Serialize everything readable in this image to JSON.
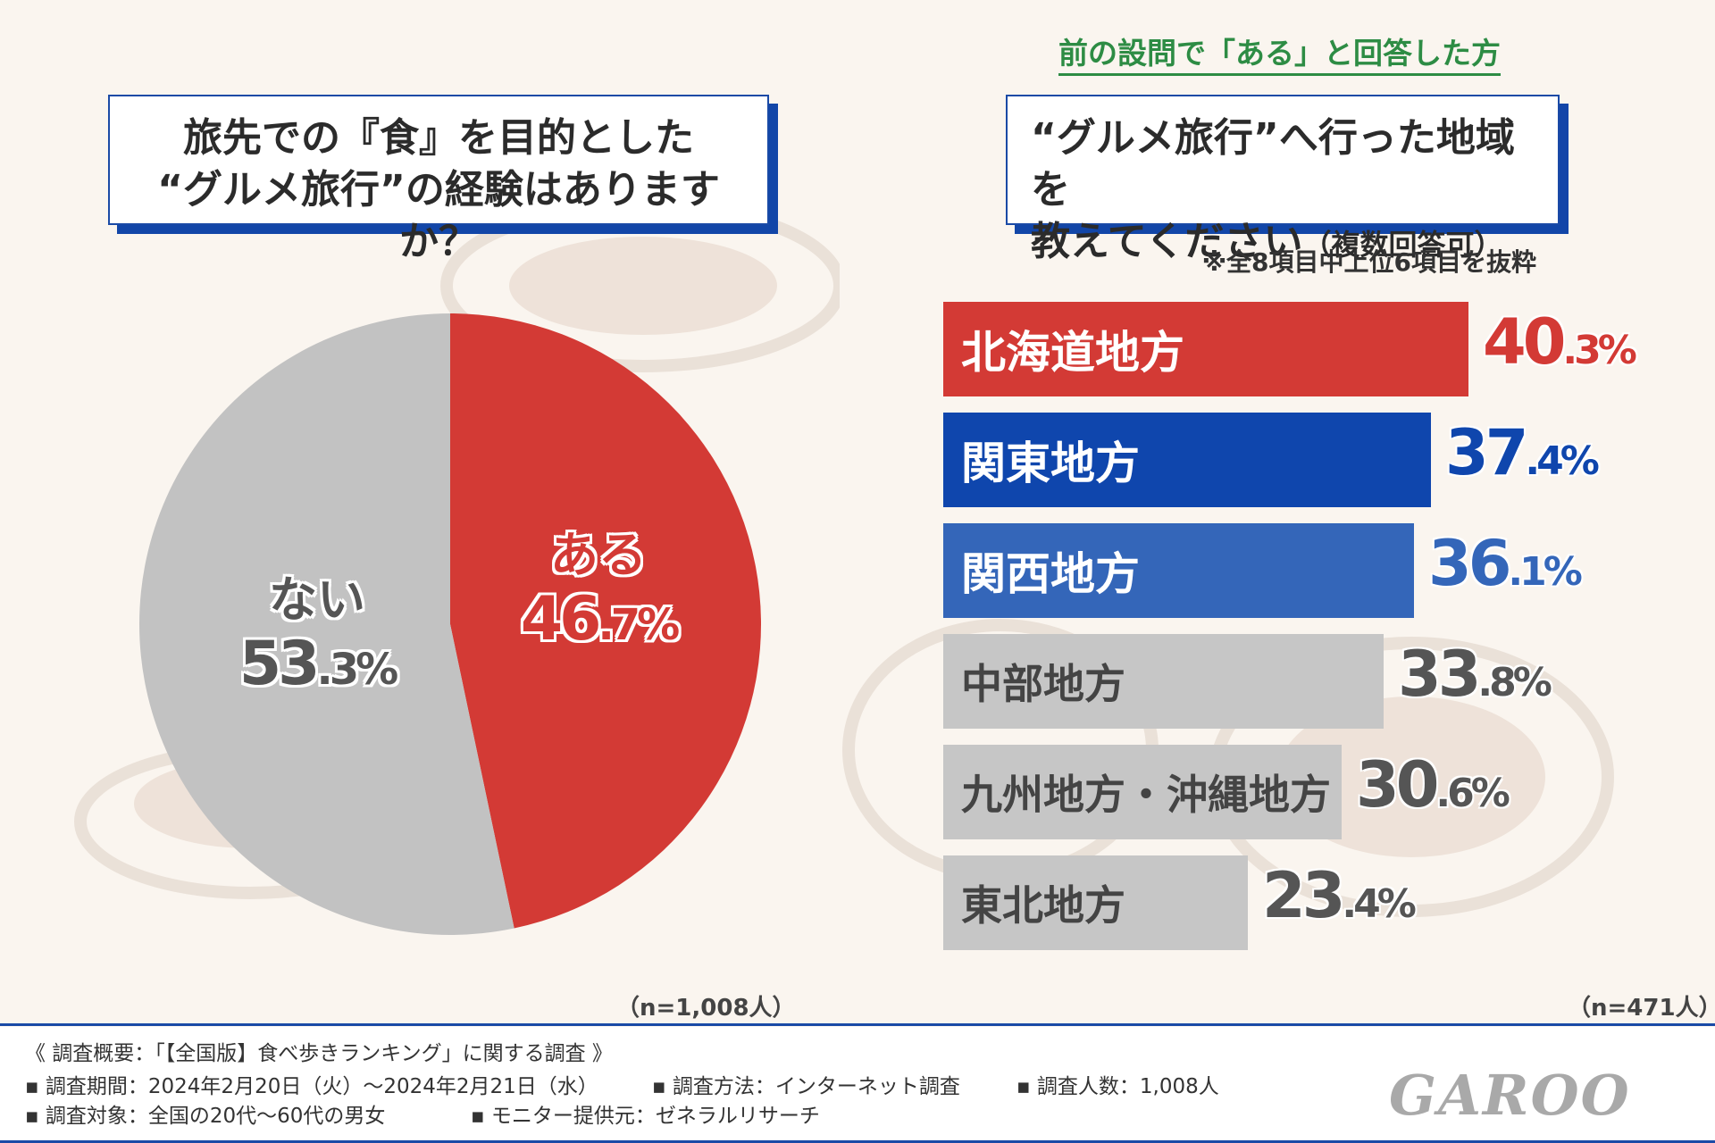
{
  "left_panel": {
    "question_line1": "旅先での『食』を目的とした",
    "question_line2": "“グルメ旅行”の経験はありますか？",
    "sample_size": "（n=1,008人）"
  },
  "right_panel": {
    "subheading": "前の設問で「ある」と回答した方",
    "question_line1": "“グルメ旅行”へ行った地域を",
    "question_line2_main": "教えてください",
    "question_line2_small": "（複数回答可）",
    "note": "※全8項目中上位6項目を抜粋",
    "sample_size": "（n=471人）"
  },
  "chart_data": [
    {
      "type": "pie",
      "title": "旅先での『食』を目的とした“グルメ旅行”の経験はありますか？",
      "slices": [
        {
          "label": "ある",
          "value": 46.7,
          "pct_int": "46",
          "pct_dec": ".7%",
          "color": "#d33a35"
        },
        {
          "label": "ない",
          "value": 53.3,
          "pct_int": "53",
          "pct_dec": ".3%",
          "color": "#c2c2c2"
        }
      ]
    },
    {
      "type": "bar",
      "orientation": "horizontal",
      "title": "“グルメ旅行”へ行った地域を教えてください（複数回答可）",
      "xlim": [
        0,
        50
      ],
      "bars": [
        {
          "label": "北海道地方",
          "value": 40.3,
          "val_int": "40",
          "val_dec": ".3%",
          "color": "#d33a35",
          "text_color": "#d33a35"
        },
        {
          "label": "関東地方",
          "value": 37.4,
          "val_int": "37",
          "val_dec": ".4%",
          "color": "#0f46ad",
          "text_color": "#0f46ad"
        },
        {
          "label": "関西地方",
          "value": 36.1,
          "val_int": "36",
          "val_dec": ".1%",
          "color": "#3466b9",
          "text_color": "#3466b9"
        },
        {
          "label": "中部地方",
          "value": 33.8,
          "val_int": "33",
          "val_dec": ".8%",
          "color": "#c6c6c6",
          "text_color": "#555555"
        },
        {
          "label": "九州地方・沖縄地方",
          "value": 30.6,
          "val_int": "30",
          "val_dec": ".6%",
          "color": "#c6c6c6",
          "text_color": "#555555"
        },
        {
          "label": "東北地方",
          "value": 23.4,
          "val_int": "23",
          "val_dec": ".4%",
          "color": "#c6c6c6",
          "text_color": "#555555"
        }
      ]
    }
  ],
  "footer": {
    "overview": "《 調査概要：「【全国版】食べ歩きランキング」に関する調査 》",
    "period": "▪ 調査期間：2024年2月20日（火）～2024年2月21日（水）",
    "method": "▪ 調査方法：インターネット調査",
    "count": "▪ 調査人数：1,008人",
    "target": "▪ 調査対象：全国の20代～60代の男女",
    "provider": "▪ モニター提供元：ゼネラルリサーチ",
    "logo": "GAROO"
  }
}
